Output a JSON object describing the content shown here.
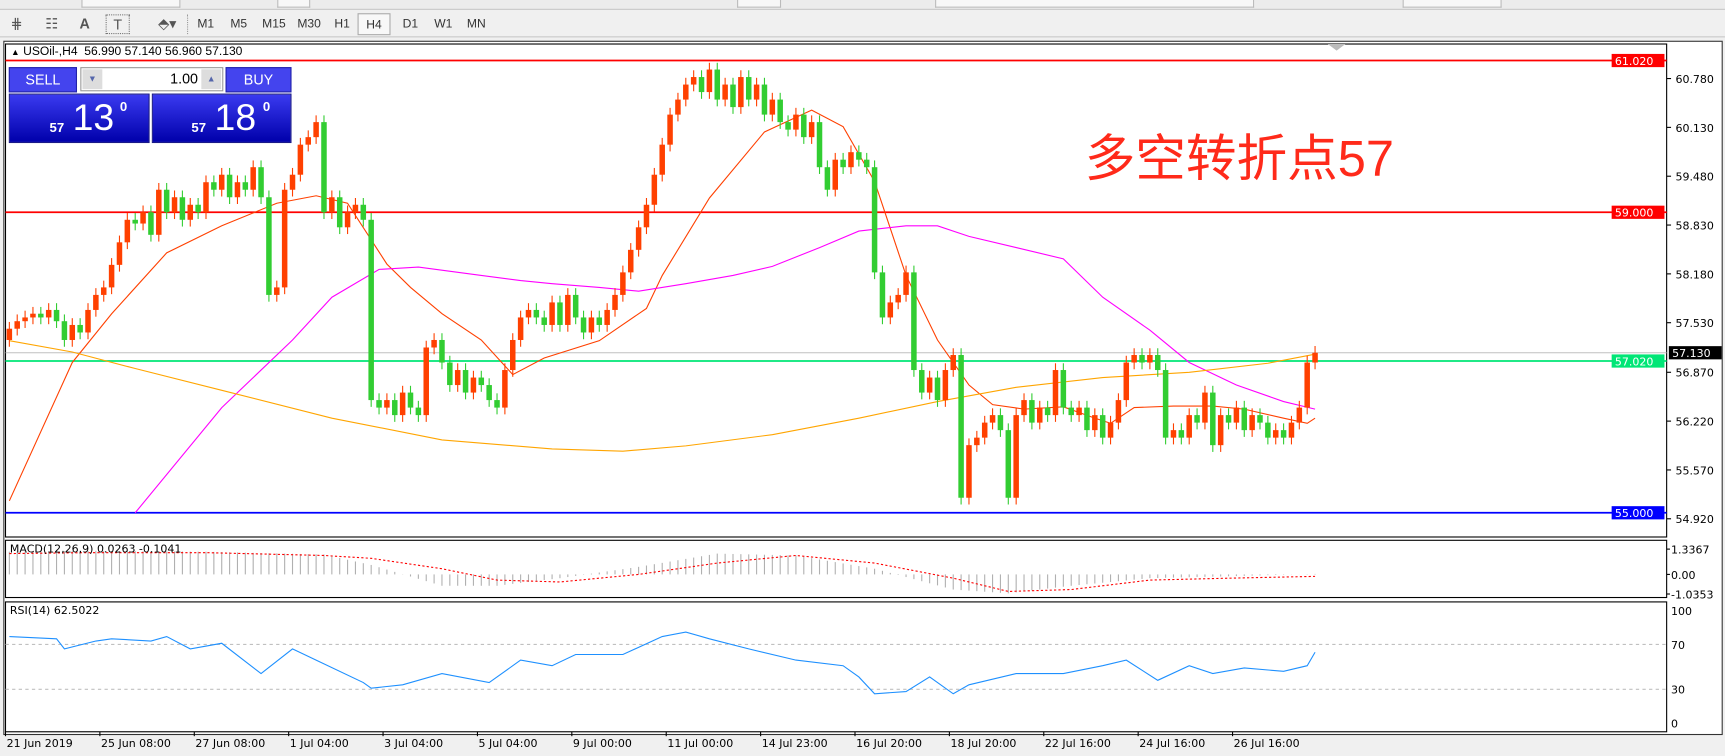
{
  "toolbar": {
    "timeframes": [
      "M1",
      "M5",
      "M15",
      "M30",
      "H1",
      "H4",
      "D1",
      "W1",
      "MN"
    ],
    "selected": "H4",
    "icons": [
      "equidistant-channel-icon",
      "fibonacci-icon",
      "text-icon",
      "text-label-icon",
      "arrows-icon"
    ],
    "icon_glyphs": [
      "⋕",
      "☷",
      "A",
      "T",
      "⬘▾"
    ]
  },
  "chart": {
    "header": "USOil-,H4  56.990 57.140 56.960 57.130",
    "header_icon": "triangle-up-icon",
    "annotation": "多空转折点57"
  },
  "trade_panel": {
    "sell_label": "SELL",
    "buy_label": "BUY",
    "lot": "1.00",
    "sell_big": "57",
    "sell_main": "13",
    "sell_sup": "0",
    "buy_big": "57",
    "buy_main": "18",
    "buy_sup": "0",
    "colors": {
      "panel": "#2b2bd6"
    }
  },
  "macd": {
    "label": "MACD(12,26,9) 0.0263 -0.1041",
    "ticks": [
      "1.3367",
      "0.00",
      "-1.0353"
    ]
  },
  "rsi": {
    "label": "RSI(14) 62.5022",
    "ticks": [
      "100",
      "70",
      "30",
      "0"
    ]
  },
  "chart_data": {
    "type": "candlestick",
    "symbol": "USOil-",
    "timeframe": "H4",
    "price_ticks": [
      "60.780",
      "60.130",
      "59.480",
      "58.830",
      "58.180",
      "57.530",
      "56.870",
      "56.220",
      "55.570",
      "54.920"
    ],
    "ylim": [
      54.85,
      61.15
    ],
    "hlines": [
      {
        "price": 61.02,
        "label": "61.020",
        "color": "#ff0000"
      },
      {
        "price": 59.0,
        "label": "59.000",
        "color": "#ff0000"
      },
      {
        "price": 57.02,
        "label": "57.020",
        "color": "#00e676"
      },
      {
        "price": 55.0,
        "label": "55.000",
        "color": "#0000ff"
      }
    ],
    "bid": {
      "price": 57.13,
      "label": "57.130"
    },
    "time_labels": [
      "21 Jun 2019",
      "25 Jun 08:00",
      "27 Jun 08:00",
      "1 Jul 04:00",
      "3 Jul 04:00",
      "5 Jul 04:00",
      "9 Jul 00:00",
      "11 Jul 00:00",
      "14 Jul 23:00",
      "16 Jul 20:00",
      "18 Jul 20:00",
      "22 Jul 16:00",
      "24 Jul 16:00",
      "26 Jul 16:00"
    ],
    "time_label_every_bars": 12,
    "first_open": 57.3,
    "closes": [
      57.45,
      57.55,
      57.6,
      57.65,
      57.6,
      57.7,
      57.55,
      57.3,
      57.5,
      57.4,
      57.7,
      57.9,
      58.0,
      58.3,
      58.6,
      58.9,
      58.85,
      59.0,
      58.7,
      59.3,
      59.0,
      59.2,
      58.9,
      59.1,
      59.0,
      59.4,
      59.3,
      59.5,
      59.2,
      59.4,
      59.3,
      59.6,
      59.2,
      57.9,
      58.0,
      59.3,
      59.5,
      59.9,
      60.0,
      60.2,
      59.0,
      59.2,
      58.8,
      59.0,
      59.1,
      58.9,
      56.5,
      56.4,
      56.5,
      56.3,
      56.6,
      56.4,
      56.3,
      57.2,
      57.3,
      57.0,
      56.7,
      56.9,
      56.6,
      56.8,
      56.7,
      56.5,
      56.4,
      56.9,
      57.3,
      57.6,
      57.7,
      57.6,
      57.5,
      57.8,
      57.5,
      57.9,
      57.6,
      57.4,
      57.6,
      57.5,
      57.7,
      57.9,
      58.2,
      58.5,
      58.8,
      59.1,
      59.5,
      59.9,
      60.3,
      60.5,
      60.7,
      60.8,
      60.6,
      60.9,
      60.5,
      60.7,
      60.4,
      60.8,
      60.5,
      60.7,
      60.3,
      60.5,
      60.2,
      60.1,
      60.3,
      60.0,
      60.2,
      59.6,
      59.3,
      59.7,
      59.6,
      59.8,
      59.7,
      59.6,
      58.2,
      57.6,
      57.8,
      57.9,
      58.2,
      56.9,
      56.6,
      56.8,
      56.5,
      56.9,
      57.1,
      55.2,
      55.9,
      56.0,
      56.2,
      56.3,
      56.1,
      55.2,
      56.3,
      56.5,
      56.2,
      56.4,
      56.3,
      56.9,
      56.4,
      56.3,
      56.4,
      56.1,
      56.3,
      56.0,
      56.2,
      56.5,
      57.0,
      57.1,
      57.0,
      57.1,
      56.9,
      56.0,
      56.1,
      56.0,
      56.3,
      56.2,
      56.6,
      55.9,
      56.3,
      56.2,
      56.4,
      56.1,
      56.3,
      56.2,
      56.0,
      56.1,
      56.0,
      56.2,
      56.4,
      57.0,
      57.13
    ],
    "up_color": "#ff4000",
    "down_color": "#32cd32",
    "moving_averages": [
      {
        "color": "#ff4000",
        "points": [
          [
            0,
            55.16
          ],
          [
            8,
            57.0
          ],
          [
            13,
            57.65
          ],
          [
            20,
            58.46
          ],
          [
            27,
            58.82
          ],
          [
            34,
            59.12
          ],
          [
            39,
            59.22
          ],
          [
            43,
            59.12
          ],
          [
            48,
            58.31
          ],
          [
            51,
            58.0
          ],
          [
            55,
            57.65
          ],
          [
            60,
            57.3
          ],
          [
            64,
            56.84
          ],
          [
            68,
            57.06
          ],
          [
            75,
            57.29
          ],
          [
            81,
            57.72
          ],
          [
            83,
            58.16
          ],
          [
            89,
            59.19
          ],
          [
            96,
            60.07
          ],
          [
            102,
            60.36
          ],
          [
            106,
            60.14
          ],
          [
            110,
            59.41
          ],
          [
            114,
            58.16
          ],
          [
            118,
            57.3
          ],
          [
            122,
            56.7
          ],
          [
            125,
            56.44
          ],
          [
            129,
            56.38
          ],
          [
            134,
            56.41
          ],
          [
            138,
            56.26
          ],
          [
            140,
            56.19
          ],
          [
            143,
            56.4
          ],
          [
            148,
            56.42
          ],
          [
            153,
            56.42
          ],
          [
            157,
            56.38
          ],
          [
            162,
            56.26
          ],
          [
            165,
            56.19
          ],
          [
            166,
            56.26
          ]
        ]
      },
      {
        "color": "#ff00ff",
        "points": [
          [
            16,
            55.0
          ],
          [
            27,
            56.4
          ],
          [
            36,
            57.3
          ],
          [
            41,
            57.87
          ],
          [
            47,
            58.24
          ],
          [
            52,
            58.27
          ],
          [
            60,
            58.16
          ],
          [
            65,
            58.09
          ],
          [
            69,
            58.05
          ],
          [
            75,
            58.0
          ],
          [
            80,
            57.95
          ],
          [
            86,
            58.05
          ],
          [
            92,
            58.16
          ],
          [
            97,
            58.28
          ],
          [
            103,
            58.53
          ],
          [
            108,
            58.75
          ],
          [
            114,
            58.82
          ],
          [
            118,
            58.82
          ],
          [
            122,
            58.68
          ],
          [
            128,
            58.53
          ],
          [
            134,
            58.38
          ],
          [
            139,
            57.87
          ],
          [
            145,
            57.43
          ],
          [
            150,
            57.0
          ],
          [
            156,
            56.7
          ],
          [
            162,
            56.48
          ],
          [
            166,
            56.38
          ]
        ]
      },
      {
        "color": "#ffa500",
        "points": [
          [
            0,
            57.29
          ],
          [
            8,
            57.14
          ],
          [
            16,
            56.92
          ],
          [
            27,
            56.63
          ],
          [
            41,
            56.26
          ],
          [
            55,
            55.97
          ],
          [
            69,
            55.85
          ],
          [
            78,
            55.82
          ],
          [
            86,
            55.89
          ],
          [
            97,
            56.04
          ],
          [
            108,
            56.26
          ],
          [
            118,
            56.48
          ],
          [
            128,
            56.67
          ],
          [
            139,
            56.8
          ],
          [
            150,
            56.87
          ],
          [
            160,
            56.99
          ],
          [
            166,
            57.11
          ]
        ]
      }
    ],
    "macd_range": [
      -1.2,
      1.8
    ],
    "macd_main": [
      [
        0,
        1.2
      ],
      [
        10,
        1.25
      ],
      [
        25,
        1.2
      ],
      [
        40,
        1.05
      ],
      [
        46,
        0.5
      ],
      [
        55,
        -0.6
      ],
      [
        62,
        -0.6
      ],
      [
        70,
        -0.2
      ],
      [
        80,
        0.4
      ],
      [
        90,
        1.1
      ],
      [
        100,
        1.0
      ],
      [
        110,
        0.3
      ],
      [
        120,
        -0.8
      ],
      [
        127,
        -1.0
      ],
      [
        135,
        -0.6
      ],
      [
        145,
        -0.2
      ],
      [
        155,
        -0.1
      ],
      [
        166,
        0.0263
      ]
    ],
    "macd_signal": [
      [
        0,
        1.1
      ],
      [
        10,
        1.15
      ],
      [
        25,
        1.15
      ],
      [
        40,
        1.0
      ],
      [
        46,
        0.85
      ],
      [
        55,
        0.3
      ],
      [
        62,
        -0.3
      ],
      [
        70,
        -0.4
      ],
      [
        80,
        0.0
      ],
      [
        90,
        0.6
      ],
      [
        100,
        1.0
      ],
      [
        110,
        0.6
      ],
      [
        120,
        -0.2
      ],
      [
        127,
        -0.9
      ],
      [
        135,
        -0.8
      ],
      [
        145,
        -0.3
      ],
      [
        155,
        -0.2
      ],
      [
        166,
        -0.1041
      ]
    ],
    "rsi_levels": [
      70,
      30
    ],
    "rsi": [
      [
        0,
        77
      ],
      [
        6,
        75
      ],
      [
        7,
        66
      ],
      [
        11,
        73
      ],
      [
        13,
        75
      ],
      [
        18,
        73
      ],
      [
        20,
        77
      ],
      [
        23,
        66
      ],
      [
        27,
        71
      ],
      [
        32,
        44
      ],
      [
        36,
        66
      ],
      [
        39,
        56
      ],
      [
        45,
        36
      ],
      [
        46,
        31
      ],
      [
        50,
        34
      ],
      [
        55,
        44
      ],
      [
        61,
        36
      ],
      [
        65,
        56
      ],
      [
        69,
        51
      ],
      [
        72,
        61
      ],
      [
        78,
        61
      ],
      [
        83,
        77
      ],
      [
        86,
        81
      ],
      [
        89,
        75
      ],
      [
        94,
        66
      ],
      [
        100,
        56
      ],
      [
        106,
        51
      ],
      [
        108,
        41
      ],
      [
        110,
        26
      ],
      [
        114,
        28
      ],
      [
        117,
        41
      ],
      [
        120,
        26
      ],
      [
        122,
        34
      ],
      [
        128,
        44
      ],
      [
        134,
        44
      ],
      [
        139,
        51
      ],
      [
        142,
        56
      ],
      [
        146,
        38
      ],
      [
        150,
        51
      ],
      [
        153,
        44
      ],
      [
        157,
        49
      ],
      [
        162,
        46
      ],
      [
        165,
        51
      ],
      [
        166,
        63
      ]
    ]
  }
}
